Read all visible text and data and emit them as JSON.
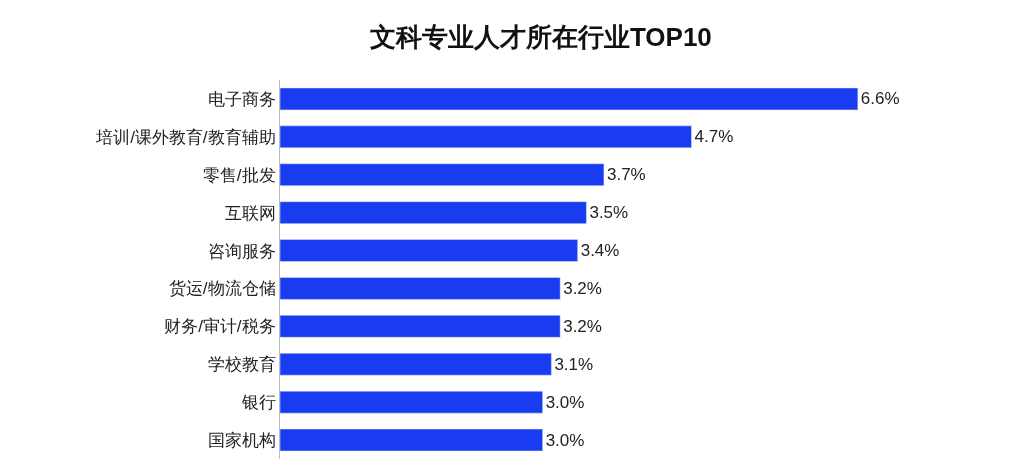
{
  "chart_data": {
    "type": "bar",
    "orientation": "horizontal",
    "title": "文科专业人才所在行业TOP10",
    "categories": [
      "电子商务",
      "培训/课外教育/教育辅助",
      "零售/批发",
      "互联网",
      "咨询服务",
      "货运/物流仓储",
      "财务/审计/税务",
      "学校教育",
      "银行",
      "国家机构"
    ],
    "values": [
      6.6,
      4.7,
      3.7,
      3.5,
      3.4,
      3.2,
      3.2,
      3.1,
      3.0,
      3.0
    ],
    "value_labels": [
      "6.6%",
      "4.7%",
      "3.7%",
      "3.5%",
      "3.4%",
      "3.2%",
      "3.2%",
      "3.1%",
      "3.0%",
      "3.0%"
    ],
    "color": "#1a3cf0"
  }
}
